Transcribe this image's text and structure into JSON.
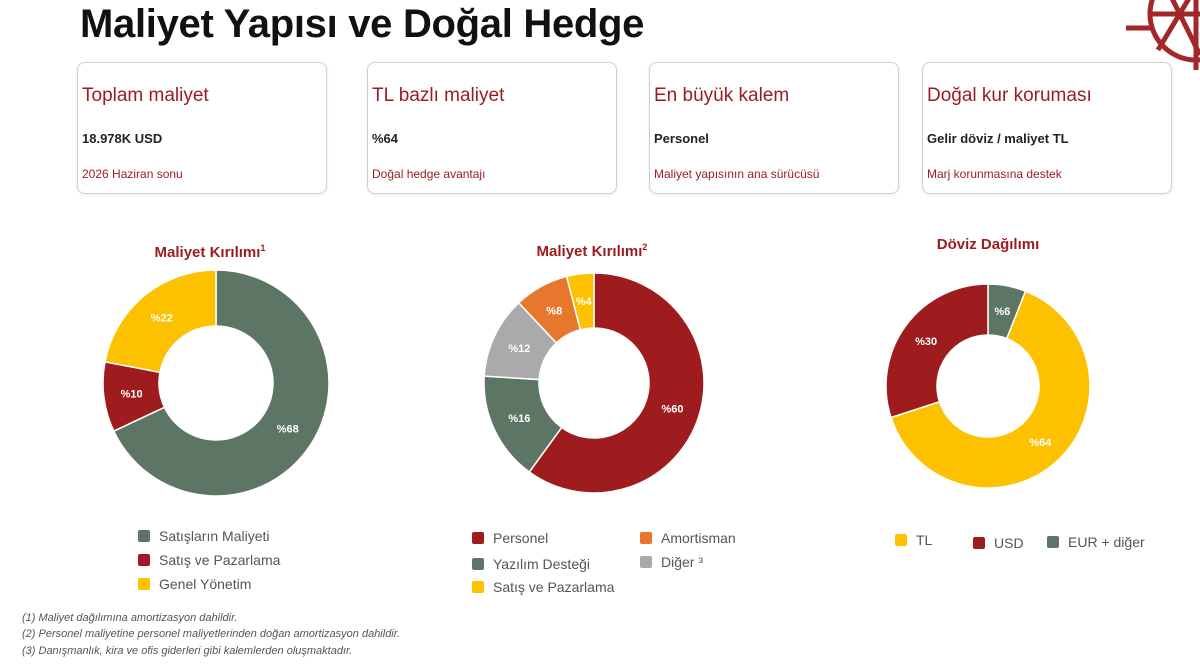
{
  "page": {
    "title": "Maliyet Yapısı ve Doğal Hedge"
  },
  "cards": [
    {
      "title": "Toplam maliyet",
      "value": "18.978K USD",
      "note": "2026 Haziran sonu"
    },
    {
      "title": "TL bazlı maliyet",
      "value": "%64",
      "note": "Doğal hedge avantajı"
    },
    {
      "title": "En büyük kalem",
      "value": "Personel",
      "note": "Maliyet yapısının ana sürücüsü"
    },
    {
      "title": "Doğal kur koruması",
      "value": "Gelir döviz / maliyet TL",
      "note": "Marj korunmasına destek"
    }
  ],
  "colors": {
    "green": "#5d7565",
    "red": "#9e1b1e",
    "yellow": "#fdc100",
    "orange": "#e8772e",
    "gray": "#aaaaaa",
    "brand": "#9b1b1f"
  },
  "chart_data": [
    {
      "type": "pie",
      "title": "Maliyet Kırılımı",
      "title_sup": "1",
      "series": [
        {
          "name": "Satışların Maliyeti",
          "value": 68,
          "label": "%68",
          "color": "#5d7565"
        },
        {
          "name": "Satış ve Pazarlama",
          "value": 10,
          "label": "%10",
          "color": "#9e1b1e"
        },
        {
          "name": "Genel Yönetim",
          "value": 22,
          "label": "%22",
          "color": "#fdc100"
        }
      ],
      "legend": [
        "Satışların Maliyeti",
        "Satış ve Pazarlama",
        "Genel Yönetim"
      ]
    },
    {
      "type": "pie",
      "title": "Maliyet Kırılımı",
      "title_sup": "2",
      "series": [
        {
          "name": "Personel",
          "value": 60,
          "label": "%60",
          "color": "#9e1b1e"
        },
        {
          "name": "Yazılım Desteği",
          "value": 16,
          "label": "%16",
          "color": "#5d7565"
        },
        {
          "name": "Diğer ³",
          "value": 12,
          "label": "%12",
          "color": "#aaaaaa"
        },
        {
          "name": "Amortisman",
          "value": 8,
          "label": "%8",
          "color": "#e8772e"
        },
        {
          "name": "Satış ve Pazarlama",
          "value": 4,
          "label": "%4",
          "color": "#fdc100"
        }
      ],
      "legend": [
        "Personel",
        "Amortisman",
        "Yazılım Desteği",
        "Diğer ³",
        "Satış ve Pazarlama"
      ]
    },
    {
      "type": "pie",
      "title": "Döviz Dağılımı",
      "title_sup": "",
      "series": [
        {
          "name": "EUR + diğer",
          "value": 6,
          "label": "%6",
          "color": "#5d7565"
        },
        {
          "name": "TL",
          "value": 64,
          "label": "%64",
          "color": "#fdc100"
        },
        {
          "name": "USD",
          "value": 30,
          "label": "%30",
          "color": "#9e1b1e"
        }
      ],
      "legend": [
        "TL",
        "USD",
        "EUR + diğer"
      ]
    }
  ],
  "footnotes": [
    "(1) Maliyet dağılımına amortizasyon dahildir.",
    "(2) Personel maliyetine personel maliyetlerinden doğan amortizasyon dahildir.",
    "(3) Danışmanlık, kira ve ofis giderleri gibi kalemlerden oluşmaktadır."
  ]
}
